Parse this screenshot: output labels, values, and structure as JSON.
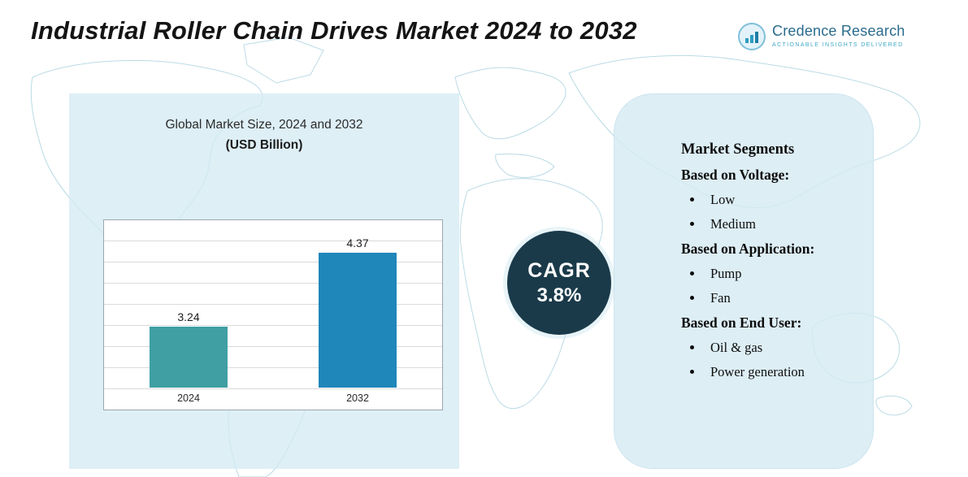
{
  "header": {
    "title": "Industrial Roller Chain Drives Market 2024 to 2032"
  },
  "logo": {
    "name": "Credence Research",
    "tagline": "Actionable Insights Delivered"
  },
  "chart_data": {
    "type": "bar",
    "title": "Global Market Size, 2024 and 2032",
    "subtitle": "(USD Billion)",
    "categories": [
      "2024",
      "2032"
    ],
    "values": [
      3.24,
      4.37
    ],
    "unit": "USD Billion",
    "ylim": [
      2.3,
      4.9
    ],
    "grid": true,
    "legend": false,
    "bar_colors": [
      "#3f9fa3",
      "#1f87b9"
    ]
  },
  "cagr": {
    "label": "CAGR",
    "value": "3.8%"
  },
  "segments": {
    "heading": "Market Segments",
    "groups": [
      {
        "label": "Based on Voltage:",
        "items": [
          "Low",
          "Medium"
        ]
      },
      {
        "label": "Based on Application:",
        "items": [
          "Pump",
          "Fan"
        ]
      },
      {
        "label": "Based on End User:",
        "items": [
          "Oil & gas",
          "Power generation"
        ]
      }
    ]
  },
  "colors": {
    "panel_background": "#d5eaf3",
    "cagr_circle": "#1a3a4a",
    "map_line": "#b3d7e2",
    "bar_2024": "#3f9fa3",
    "bar_2032": "#1f87b9"
  }
}
